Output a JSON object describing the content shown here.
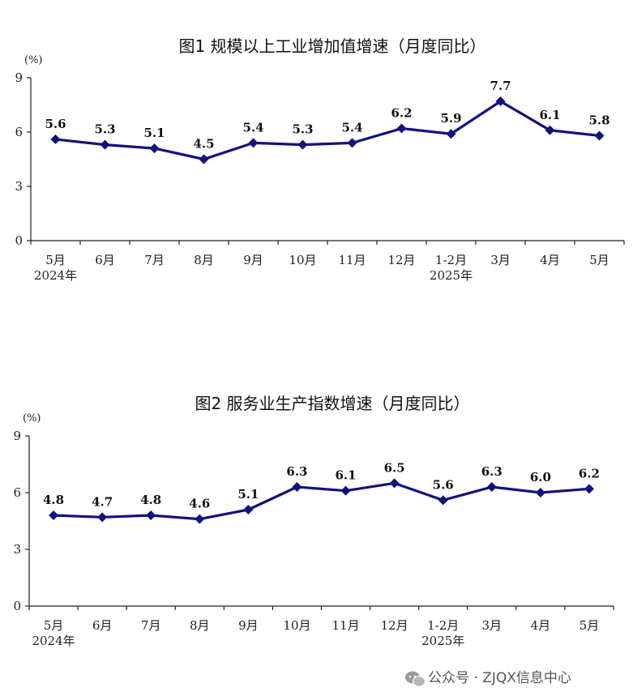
{
  "chart_data": [
    {
      "type": "line",
      "title": "图1    规模以上工业增加值增速（月度同比）",
      "unit": "(%)",
      "categories": [
        "5月",
        "6月",
        "7月",
        "8月",
        "9月",
        "10月",
        "11月",
        "12月",
        "1-2月",
        "3月",
        "4月",
        "5月"
      ],
      "year_labels": [
        {
          "index": 0,
          "text": "2024年"
        },
        {
          "index": 8,
          "text": "2025年"
        }
      ],
      "values": [
        5.6,
        5.3,
        5.1,
        4.5,
        5.4,
        5.3,
        5.4,
        6.2,
        5.9,
        7.7,
        6.1,
        5.8
      ],
      "data_labels": [
        "5.6",
        "5.3",
        "5.1",
        "4.5",
        "5.4",
        "5.3",
        "5.4",
        "6.2",
        "5.9",
        "7.7",
        "6.1",
        "5.8"
      ],
      "y_ticks": [
        "0",
        "3",
        "6",
        "9"
      ],
      "ylim": [
        0,
        9
      ],
      "grid": false,
      "line_color": "#13117f"
    },
    {
      "type": "line",
      "title": "图2    服务业生产指数增速（月度同比）",
      "unit": "(%)",
      "categories": [
        "5月",
        "6月",
        "7月",
        "8月",
        "9月",
        "10月",
        "11月",
        "12月",
        "1-2月",
        "3月",
        "4月",
        "5月"
      ],
      "year_labels": [
        {
          "index": 0,
          "text": "2024年"
        },
        {
          "index": 8,
          "text": "2025年"
        }
      ],
      "values": [
        4.8,
        4.7,
        4.8,
        4.6,
        5.1,
        6.3,
        6.1,
        6.5,
        5.6,
        6.3,
        6.0,
        6.2
      ],
      "data_labels": [
        "4.8",
        "4.7",
        "4.8",
        "4.6",
        "5.1",
        "6.3",
        "6.1",
        "6.5",
        "5.6",
        "6.3",
        "6.0",
        "6.2"
      ],
      "y_ticks": [
        "0",
        "3",
        "6",
        "9"
      ],
      "ylim": [
        0,
        9
      ],
      "grid": false,
      "line_color": "#13117f"
    }
  ],
  "watermark": {
    "text": "公众号 · ZJQX信息中心",
    "icon": "wechat-icon"
  }
}
